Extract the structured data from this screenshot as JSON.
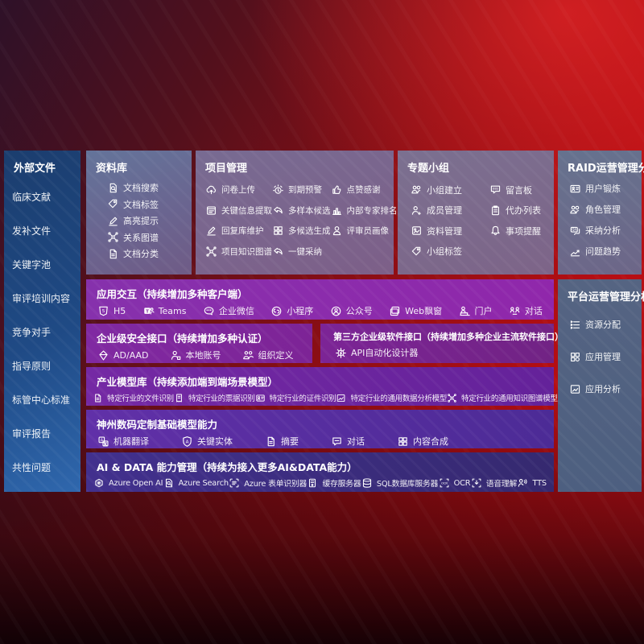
{
  "colors": {
    "background_red": "#b30e13",
    "background_dark": "#2e1128",
    "sidebar_blue": "#1f4a85",
    "grey_panel": "#6a6590",
    "row_purple": "#8631ac",
    "row_indigo": "#42308e"
  },
  "sidebar": {
    "title": "外部文件",
    "items": [
      {
        "label": "临床文献"
      },
      {
        "label": "发补文件"
      },
      {
        "label": "关键字池"
      },
      {
        "label": "审评培训内容"
      },
      {
        "label": "竞争对手"
      },
      {
        "label": "指导原则"
      },
      {
        "label": "标管中心标准"
      },
      {
        "label": "审评报告"
      },
      {
        "label": "共性问题"
      }
    ]
  },
  "panels": {
    "library": {
      "title": "资料库",
      "items": [
        {
          "icon": "doc-search",
          "label": "文档搜索"
        },
        {
          "icon": "tag",
          "label": "文档标签"
        },
        {
          "icon": "pen",
          "label": "高亮提示"
        },
        {
          "icon": "network",
          "label": "关系图谱"
        },
        {
          "icon": "doc",
          "label": "文档分类"
        }
      ]
    },
    "project": {
      "title": "项目管理",
      "items": [
        {
          "icon": "cloud-up",
          "label": "问卷上传"
        },
        {
          "icon": "alarm",
          "label": "到期预警"
        },
        {
          "icon": "thumb",
          "label": "点赞感谢"
        },
        {
          "icon": "browser",
          "label": "关键信息提取"
        },
        {
          "icon": "reply",
          "label": "多样本候选"
        },
        {
          "icon": "rank",
          "label": "内部专家排名"
        },
        {
          "icon": "pen",
          "label": "回复库维护"
        },
        {
          "icon": "gridgen",
          "label": "多候选生成"
        },
        {
          "icon": "person",
          "label": "评审员画像"
        },
        {
          "icon": "network",
          "label": "项目知识图谱"
        },
        {
          "icon": "reply",
          "label": "一键采纳"
        }
      ]
    },
    "groups": {
      "title": "专题小组",
      "items": [
        {
          "icon": "people",
          "label": "小组建立"
        },
        {
          "icon": "bbs",
          "label": "留言板"
        },
        {
          "icon": "member",
          "label": "成员管理"
        },
        {
          "icon": "clipboard",
          "label": "代办列表"
        },
        {
          "icon": "album",
          "label": "资料管理"
        },
        {
          "icon": "bell",
          "label": "事项提醒"
        },
        {
          "icon": "tag",
          "label": "小组标签"
        }
      ]
    },
    "raid": {
      "title": "RAID运营管理分析",
      "items": [
        {
          "icon": "idcard",
          "label": "用户锻炼"
        },
        {
          "icon": "people",
          "label": "角色管理"
        },
        {
          "icon": "qa",
          "label": "采纳分析"
        },
        {
          "icon": "trend",
          "label": "问题趋势"
        }
      ]
    },
    "platform": {
      "title": "平台运营管理分析",
      "items": [
        {
          "icon": "listcfg",
          "label": "资源分配"
        },
        {
          "icon": "appgrid",
          "label": "应用管理"
        },
        {
          "icon": "imgchart",
          "label": "应用分析"
        }
      ]
    }
  },
  "rows": {
    "interaction": {
      "title": "应用交互（持续增加多种客户端）",
      "items": [
        {
          "icon": "h5",
          "label": "H5"
        },
        {
          "icon": "teams",
          "label": "Teams"
        },
        {
          "icon": "wechat",
          "label": "企业微信"
        },
        {
          "icon": "miniapp",
          "label": "小程序"
        },
        {
          "icon": "pubaccount",
          "label": "公众号"
        },
        {
          "icon": "webwin",
          "label": "Web飘窗"
        },
        {
          "icon": "portal",
          "label": "门户"
        },
        {
          "icon": "dialog",
          "label": "对话"
        }
      ]
    },
    "security": {
      "title": "企业级安全接口（持续增加多种认证）",
      "items": [
        {
          "icon": "diamond",
          "label": "AD/AAD"
        },
        {
          "icon": "person-badge",
          "label": "本地账号"
        },
        {
          "icon": "org",
          "label": "组织定义"
        }
      ]
    },
    "thirdparty": {
      "title": "第三方企业级软件接口（持续增加多种企业主流软件接口）",
      "items": [
        {
          "icon": "apigear",
          "label": "API自动化设计器"
        }
      ]
    },
    "industry": {
      "title": "产业模型库（持续添加端到端场景模型）",
      "items": [
        {
          "icon": "doc",
          "label": "特定行业的文件识别"
        },
        {
          "icon": "receipt",
          "label": "特定行业的票据识别"
        },
        {
          "icon": "idcard",
          "label": "特定行业的证件识别"
        },
        {
          "icon": "imgchart",
          "label": "特定行业的通用数据分析模型"
        },
        {
          "icon": "network",
          "label": "特定行业的通用知识图谱模型"
        }
      ]
    },
    "custom": {
      "title": "神州数码定制基础模型能力",
      "items": [
        {
          "icon": "translate",
          "label": "机器翻译"
        },
        {
          "icon": "shieldA",
          "label": "关键实体"
        },
        {
          "icon": "doc",
          "label": "摘要"
        },
        {
          "icon": "chat",
          "label": "对话"
        },
        {
          "icon": "gridgen",
          "label": "内容合成"
        }
      ]
    },
    "aidata": {
      "title": "AI & DATA 能力管理（持续为接入更多AI&DATA能力）",
      "items": [
        {
          "icon": "openai",
          "label": "Azure Open AI"
        },
        {
          "icon": "azsearch",
          "label": "Azure Search"
        },
        {
          "icon": "formrec",
          "label": "Azure 表单识别器"
        },
        {
          "icon": "cache",
          "label": "缓存服务器"
        },
        {
          "icon": "sqldb",
          "label": "SQL数据库服务器"
        },
        {
          "icon": "ocr",
          "label": "OCR"
        },
        {
          "icon": "speech",
          "label": "语音理解"
        },
        {
          "icon": "tts",
          "label": "TTS"
        }
      ]
    }
  }
}
